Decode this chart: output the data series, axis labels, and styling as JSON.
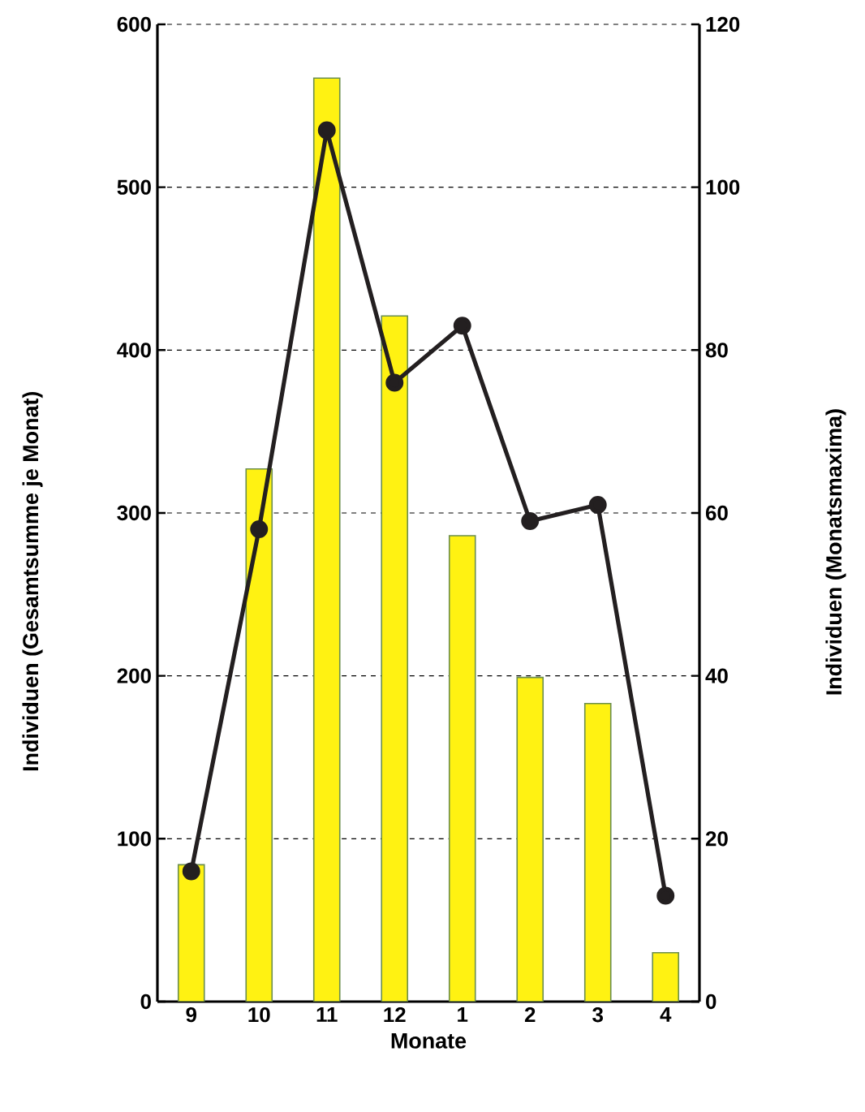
{
  "chart_data": {
    "type": "bar",
    "xlabel": "Monate",
    "ylabel": "Individuen (Gesamtsumme je Monat)",
    "y2label": "Individuen (Monatsmaxima)",
    "categories": [
      "9",
      "10",
      "11",
      "12",
      "1",
      "2",
      "3",
      "4"
    ],
    "series": [
      {
        "color": "#fff212",
        "values": [
          84,
          327,
          567,
          421,
          286,
          199,
          183,
          30
        ]
      },
      {
        "type": "line",
        "axis": "y2",
        "color": "#231f20",
        "marker": "circle",
        "line_style": "solid",
        "values": [
          16,
          58,
          107,
          76,
          83,
          59,
          61,
          13
        ]
      }
    ],
    "ylim": [
      0,
      600
    ],
    "yticks": [
      0,
      100,
      200,
      300,
      400,
      500,
      600
    ],
    "y2lim": [
      0,
      120
    ],
    "y2ticks": [
      0,
      20,
      40,
      60,
      80,
      100,
      120
    ],
    "grid": "y"
  }
}
